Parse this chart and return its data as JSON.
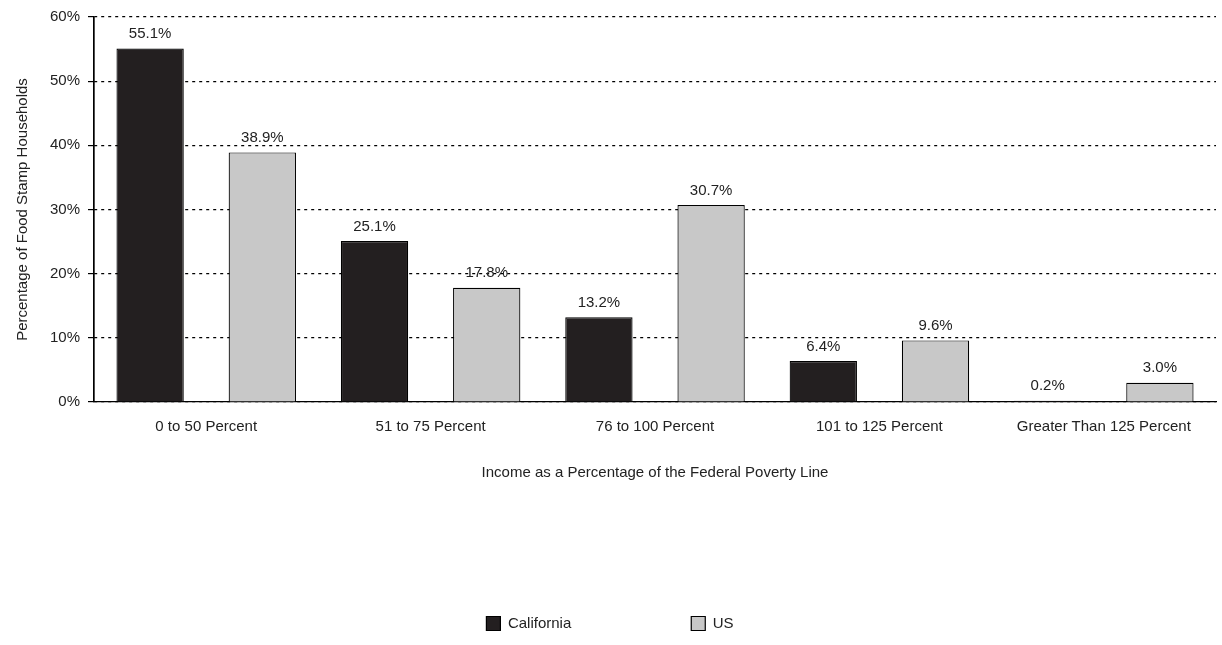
{
  "chart_data": {
    "type": "bar",
    "xlabel": "Income as a Percentage of the Federal Poverty Line",
    "ylabel": "Percentage of Food Stamp Households",
    "categories": [
      "0 to 50 Percent",
      "51 to 75 Percent",
      "76 to 100 Percent",
      "101 to 125 Percent",
      "Greater Than 125 Percent"
    ],
    "series": [
      {
        "name": "California",
        "color": "#231f20",
        "values": [
          55.1,
          25.1,
          13.2,
          6.4,
          0.2
        ],
        "value_labels": [
          "55.1%",
          "25.1%",
          "13.2%",
          "6.4%",
          "0.2%"
        ]
      },
      {
        "name": "US",
        "color": "#c8c8c8",
        "values": [
          38.9,
          17.8,
          30.7,
          9.6,
          3.0
        ],
        "value_labels": [
          "38.9%",
          "17.8%",
          "30.7%",
          "9.6%",
          "3.0%"
        ]
      }
    ],
    "ylim": [
      0,
      60
    ],
    "yticks": [
      {
        "value": 0,
        "label": "0%"
      },
      {
        "value": 10,
        "label": "10%"
      },
      {
        "value": 20,
        "label": "20%"
      },
      {
        "value": 30,
        "label": "30%"
      },
      {
        "value": 40,
        "label": "40%"
      },
      {
        "value": 50,
        "label": "50%"
      },
      {
        "value": 60,
        "label": "60%"
      }
    ],
    "grid": "y",
    "legend": "bottom"
  }
}
